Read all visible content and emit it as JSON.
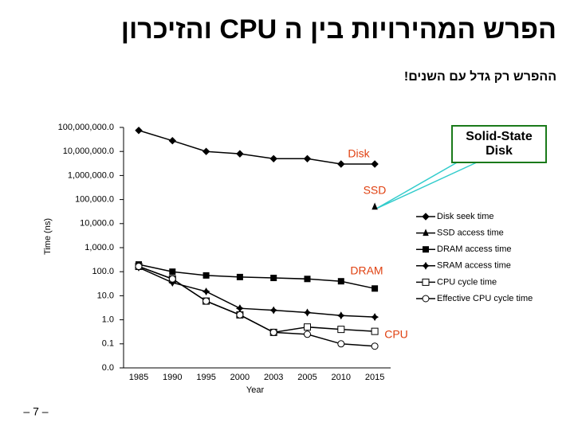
{
  "title": "הפרש המהירויות בין ה CPU והזיכרון",
  "subtitle": "ההפרש רק גדל עם השנים!",
  "page_number": "– 7 –",
  "chart_data": {
    "type": "line",
    "x_label": "Year",
    "y_label": "Time (ns)",
    "categories": [
      "1985",
      "1990",
      "1995",
      "2000",
      "2003",
      "2005",
      "2010",
      "2015"
    ],
    "log_scale": true,
    "ylim": [
      0.01,
      100000000
    ],
    "yticks": [
      {
        "value": 0.01,
        "label": "0.0"
      },
      {
        "value": 0.1,
        "label": "0.1"
      },
      {
        "value": 1,
        "label": "1.0"
      },
      {
        "value": 10,
        "label": "10.0"
      },
      {
        "value": 100,
        "label": "100.0"
      },
      {
        "value": 1000,
        "label": "1,000.0"
      },
      {
        "value": 10000,
        "label": "10,000.0"
      },
      {
        "value": 100000,
        "label": "100,000.0"
      },
      {
        "value": 1000000,
        "label": "1,000,000.0"
      },
      {
        "value": 10000000,
        "label": "10,000,000.0"
      },
      {
        "value": 100000000,
        "label": "100,000,000.0"
      }
    ],
    "legend": "right",
    "series": [
      {
        "name": "Disk seek time",
        "color": "#000000",
        "marker": "diamond",
        "values": [
          75000000,
          28000000,
          10000000,
          8000000,
          5000000,
          5000000,
          3000000,
          3000000
        ]
      },
      {
        "name": "SSD access time",
        "color": "#000000",
        "marker": "triangle",
        "values": [
          null,
          null,
          null,
          null,
          null,
          null,
          null,
          50000
        ]
      },
      {
        "name": "DRAM access time",
        "color": "#000000",
        "marker": "square",
        "values": [
          200,
          100,
          70,
          60,
          55,
          50,
          40,
          20
        ]
      },
      {
        "name": "SRAM access time",
        "color": "#000000",
        "marker": "star",
        "values": [
          150,
          35,
          15,
          3,
          2.5,
          2,
          1.5,
          1.3
        ]
      },
      {
        "name": "CPU cycle time",
        "color": "#000000",
        "marker": "open-square",
        "values": [
          166,
          50,
          6,
          1.6,
          0.3,
          0.5,
          0.4,
          0.33
        ]
      },
      {
        "name": "Effective CPU cycle time",
        "color": "#000000",
        "marker": "open-circle",
        "values": [
          166,
          50,
          6,
          1.6,
          0.3,
          0.25,
          0.1,
          0.08
        ]
      }
    ],
    "annotations": [
      "Disk",
      "SSD",
      "DRAM",
      "CPU"
    ],
    "annotation_color": "#e04010",
    "callout": "Solid-State Disk",
    "callout_color": "#1a7a1a"
  }
}
